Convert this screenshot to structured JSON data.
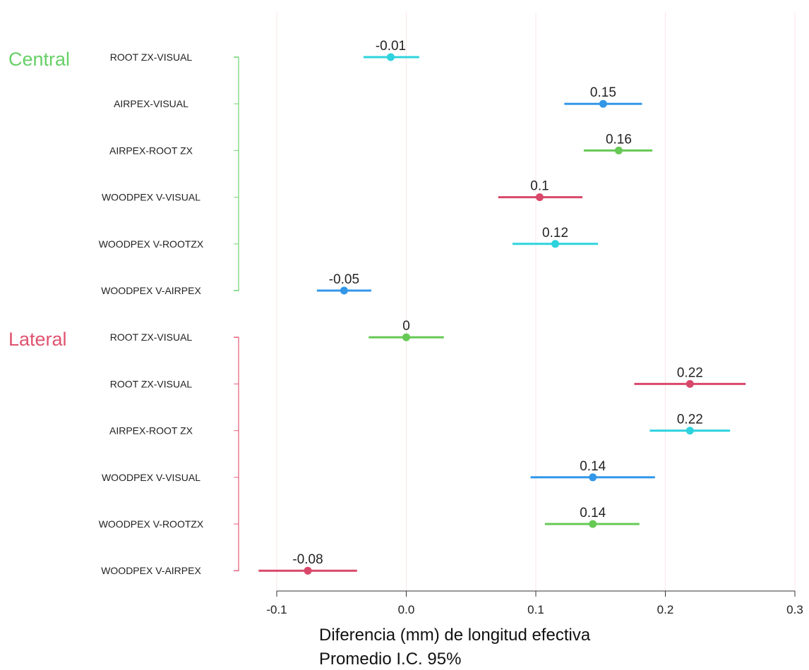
{
  "chart_data": {
    "type": "forest",
    "xlabel": "Diferencia (mm) de longitud efectiva",
    "xlabel2": "Promedio I.C. 95%",
    "xlim": [
      -0.1,
      0.3
    ],
    "xticks": [
      -0.1,
      0.0,
      0.1,
      0.2,
      0.3
    ],
    "xtick_labels": [
      "-0.1",
      "0.0",
      "0.1",
      "0.2",
      "0.3"
    ],
    "grid": "vertical",
    "groups": [
      {
        "name": "Central",
        "color": "#66d066",
        "rows": [
          {
            "label": "ROOT ZX-VISUAL",
            "mean": -0.012,
            "lo": -0.033,
            "hi": 0.01,
            "value_label": "-0.01",
            "color": "#2ed3de"
          },
          {
            "label": "AIRPEX-VISUAL",
            "mean": 0.152,
            "lo": 0.122,
            "hi": 0.182,
            "value_label": "0.15",
            "color": "#3397e8"
          },
          {
            "label": "AIRPEX-ROOT ZX",
            "mean": 0.164,
            "lo": 0.137,
            "hi": 0.19,
            "value_label": "0.16",
            "color": "#66c955"
          },
          {
            "label": "WOODPEX V-VISUAL",
            "mean": 0.103,
            "lo": 0.071,
            "hi": 0.136,
            "value_label": "0.1",
            "color": "#d8486a"
          },
          {
            "label": "WOODPEX V-ROOTZX",
            "mean": 0.115,
            "lo": 0.082,
            "hi": 0.148,
            "value_label": "0.12",
            "color": "#2ed3de"
          },
          {
            "label": "WOODPEX V-AIRPEX",
            "mean": -0.048,
            "lo": -0.069,
            "hi": -0.027,
            "value_label": "-0.05",
            "color": "#3397e8"
          }
        ]
      },
      {
        "name": "Lateral",
        "color": "#e0536f",
        "rows": [
          {
            "label": "ROOT ZX-VISUAL",
            "mean": 0.0,
            "lo": -0.029,
            "hi": 0.029,
            "value_label": "0",
            "color": "#66c955"
          },
          {
            "label": "ROOT ZX-VISUAL",
            "mean": 0.219,
            "lo": 0.176,
            "hi": 0.262,
            "value_label": "0.22",
            "color": "#d8486a"
          },
          {
            "label": "AIRPEX-ROOT ZX",
            "mean": 0.219,
            "lo": 0.188,
            "hi": 0.25,
            "value_label": "0.22",
            "color": "#2ed3de"
          },
          {
            "label": "WOODPEX V-VISUAL",
            "mean": 0.144,
            "lo": 0.096,
            "hi": 0.192,
            "value_label": "0.14",
            "color": "#3397e8"
          },
          {
            "label": "WOODPEX V-ROOTZX",
            "mean": 0.144,
            "lo": 0.107,
            "hi": 0.18,
            "value_label": "0.14",
            "color": "#66c955"
          },
          {
            "label": "WOODPEX V-AIRPEX",
            "mean": -0.076,
            "lo": -0.114,
            "hi": -0.038,
            "value_label": "-0.08",
            "color": "#d8486a"
          }
        ]
      }
    ]
  }
}
